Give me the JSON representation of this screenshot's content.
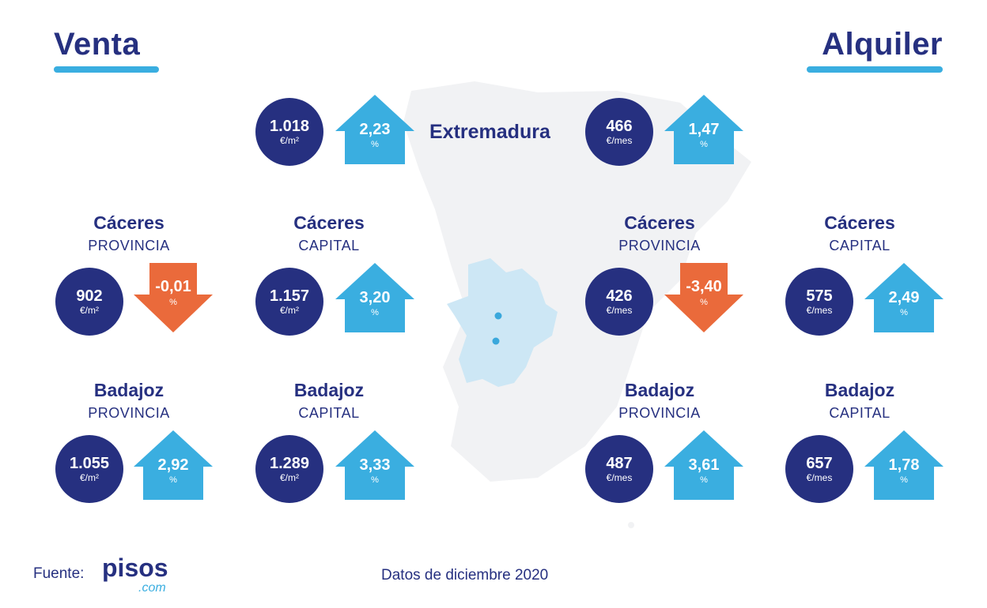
{
  "headings": {
    "left": "Venta",
    "right": "Alquiler"
  },
  "region": "Extremadura",
  "colors": {
    "navy": "#263080",
    "up": "#3aaee0",
    "down": "#ea6a3b",
    "map": "#f1f2f4",
    "highlight": "#cde7f5"
  },
  "top": {
    "venta": {
      "value": "1.018",
      "unit": "€/m²",
      "change": "2,23",
      "pct": "%",
      "direction": "up"
    },
    "alquiler": {
      "value": "466",
      "unit": "€/mes",
      "change": "1,47",
      "pct": "%",
      "direction": "up"
    }
  },
  "cells": [
    {
      "title": "Cáceres",
      "sub": "PROVINCIA",
      "value": "902",
      "unit": "€/m²",
      "change": "-0,01",
      "pct": "%",
      "direction": "down"
    },
    {
      "title": "Cáceres",
      "sub": "CAPITAL",
      "value": "1.157",
      "unit": "€/m²",
      "change": "3,20",
      "pct": "%",
      "direction": "up"
    },
    {
      "title": "Cáceres",
      "sub": "PROVINCIA",
      "value": "426",
      "unit": "€/mes",
      "change": "-3,40",
      "pct": "%",
      "direction": "down"
    },
    {
      "title": "Cáceres",
      "sub": "CAPITAL",
      "value": "575",
      "unit": "€/mes",
      "change": "2,49",
      "pct": "%",
      "direction": "up"
    },
    {
      "title": "Badajoz",
      "sub": "PROVINCIA",
      "value": "1.055",
      "unit": "€/m²",
      "change": "2,92",
      "pct": "%",
      "direction": "up"
    },
    {
      "title": "Badajoz",
      "sub": "CAPITAL",
      "value": "1.289",
      "unit": "€/m²",
      "change": "3,33",
      "pct": "%",
      "direction": "up"
    },
    {
      "title": "Badajoz",
      "sub": "PROVINCIA",
      "value": "487",
      "unit": "€/mes",
      "change": "3,61",
      "pct": "%",
      "direction": "up"
    },
    {
      "title": "Badajoz",
      "sub": "CAPITAL",
      "value": "657",
      "unit": "€/mes",
      "change": "1,78",
      "pct": "%",
      "direction": "up"
    }
  ],
  "footer": {
    "source_label": "Fuente:",
    "logo_main": "pisos",
    "logo_sub": ".com",
    "date": "Datos de diciembre 2020"
  }
}
